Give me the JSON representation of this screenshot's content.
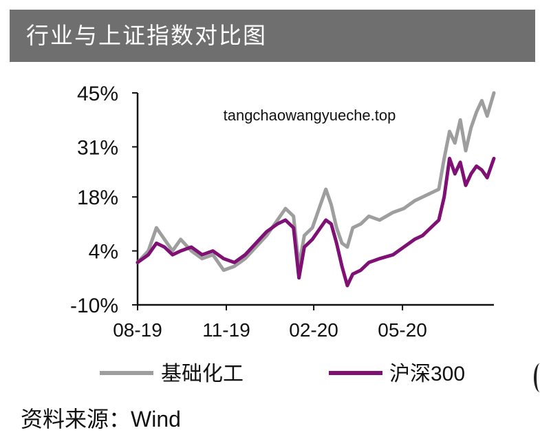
{
  "title": "行业与上证指数对比图",
  "watermark": "tangchaowangyueche.top",
  "source": {
    "label": "资料来源：",
    "value": "Wind"
  },
  "chart_data": {
    "type": "line",
    "title": "行业与上证指数对比图",
    "xlabel": "",
    "ylabel": "",
    "ylim": [
      -10,
      45
    ],
    "y_ticks": [
      "45%",
      "31%",
      "18%",
      "4%",
      "-10%"
    ],
    "y_tick_values": [
      45,
      31,
      18,
      4,
      -10
    ],
    "x_ticks": [
      "08-19",
      "11-19",
      "02-20",
      "05-20"
    ],
    "x_tick_positions": [
      0,
      66,
      131,
      197
    ],
    "x_max": 265,
    "grid": false,
    "legend_placement": "bottom",
    "series": [
      {
        "name": "基础化工",
        "color": "#9e9e9e",
        "x": [
          0,
          8,
          14,
          20,
          26,
          32,
          40,
          48,
          56,
          64,
          72,
          80,
          88,
          96,
          104,
          110,
          116,
          120,
          124,
          130,
          136,
          140,
          144,
          148,
          152,
          156,
          160,
          166,
          172,
          180,
          190,
          198,
          206,
          212,
          218,
          224,
          228,
          232,
          236,
          240,
          244,
          248,
          252,
          256,
          260,
          265
        ],
        "y": [
          1,
          4,
          10,
          7,
          4,
          7,
          4,
          2,
          3,
          -1,
          0,
          2,
          5,
          8,
          12,
          15,
          13,
          0,
          8,
          10,
          16,
          20,
          16,
          10,
          6,
          5,
          10,
          11,
          13,
          12,
          14,
          15,
          17,
          18,
          19,
          20,
          28,
          35,
          32,
          38,
          30,
          36,
          40,
          43,
          39,
          45
        ]
      },
      {
        "name": "沪深300",
        "color": "#7e1173",
        "x": [
          0,
          8,
          14,
          20,
          26,
          32,
          40,
          48,
          56,
          64,
          72,
          80,
          88,
          96,
          104,
          110,
          116,
          120,
          124,
          130,
          136,
          140,
          144,
          148,
          152,
          156,
          160,
          166,
          172,
          180,
          190,
          198,
          206,
          212,
          218,
          224,
          228,
          232,
          236,
          240,
          244,
          248,
          252,
          256,
          260,
          265
        ],
        "y": [
          1,
          3,
          6,
          5,
          3,
          4,
          5,
          3,
          4,
          2,
          1,
          3,
          6,
          9,
          11,
          12,
          10,
          -3,
          5,
          7,
          10,
          12,
          11,
          6,
          0,
          -5,
          -2,
          -1,
          1,
          2,
          3,
          5,
          7,
          8,
          10,
          12,
          18,
          28,
          24,
          27,
          21,
          24,
          26,
          25,
          23,
          28
        ]
      }
    ]
  }
}
